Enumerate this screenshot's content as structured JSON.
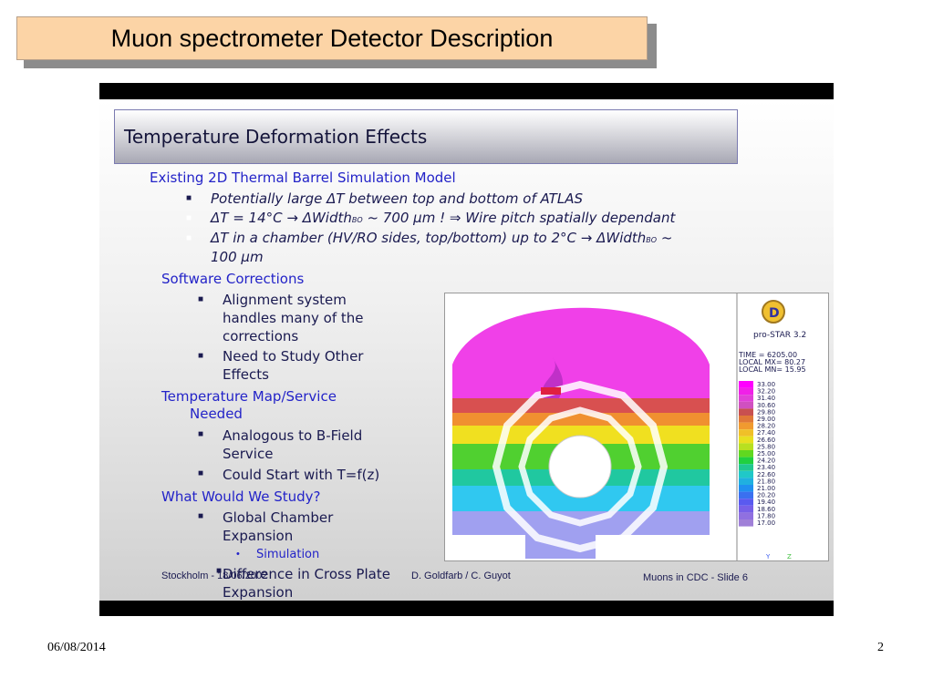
{
  "slide_title": "Muon spectrometer Detector Description",
  "inner": {
    "title": "Temperature Deformation Effects",
    "section1": "Existing 2D Thermal Barrel Simulation Model",
    "s1_b1": "Potentially large ΔT between top and bottom of ATLAS",
    "s1_b2a": "ΔT = 14°C → ΔWidth",
    "s1_b2sub": "BO",
    "s1_b2b": " ~ 700 μm ! ⇒ Wire pitch spatially dependant",
    "s1_b3a": "ΔT in a chamber (HV/RO sides, top/bottom) up to 2°C → ΔWidth",
    "s1_b3sub": "BO",
    "s1_b3b": " ~",
    "s1_b3c": "100 μm",
    "section2": "Software Corrections",
    "s2_b1_l1": "Alignment system",
    "s2_b1_l2": "handles many of the",
    "s2_b1_l3": "corrections",
    "s2_b2_l1": "Need to Study Other",
    "s2_b2_l2": "Effects",
    "section3_l1": "Temperature Map/Service",
    "section3_l2": "Needed",
    "s3_b1_l1": "Analogous to B-Field",
    "s3_b1_l2": "Service",
    "s3_b2": "Could Start with T=f(z)",
    "section4": "What Would We Study?",
    "s4_b1_l1": "Global Chamber",
    "s4_b1_l2": "Expansion",
    "s4_sub1": "Simulation",
    "s4_b2_l1": "Difference in Cross Plate",
    "s4_b2_l2": "Expansion",
    "footer_left": "Stockholm - 18/06/2002",
    "footer_mid": "D. Goldfarb / C. Guyot",
    "footer_right": "Muons in CDC - Slide 6"
  },
  "sim": {
    "logo_letter": "D",
    "product": "pro-STAR 3.2",
    "info": [
      "TIME = 6205.00",
      "LOCAL MX= 80.27",
      "LOCAL MN= 15.95"
    ],
    "scale_values": [
      "33.00",
      "32.20",
      "31.40",
      "30.60",
      "29.80",
      "29.00",
      "28.20",
      "27.40",
      "26.60",
      "25.80",
      "25.00",
      "24.20",
      "23.40",
      "22.60",
      "21.80",
      "21.00",
      "20.20",
      "19.40",
      "18.60",
      "17.80",
      "17.00"
    ],
    "scale_colors": [
      "#ff00ff",
      "#f020e8",
      "#e040d8",
      "#d050c0",
      "#c85050",
      "#e07838",
      "#f09a30",
      "#f0c028",
      "#e8e020",
      "#b8e020",
      "#60d820",
      "#20d040",
      "#20c890",
      "#20c8c8",
      "#20b0e0",
      "#2090f0",
      "#3a70f0",
      "#5a5af0",
      "#7860e8",
      "#9070e0",
      "#a080d8"
    ]
  },
  "footer": {
    "date": "06/08/2014",
    "page": "2"
  }
}
